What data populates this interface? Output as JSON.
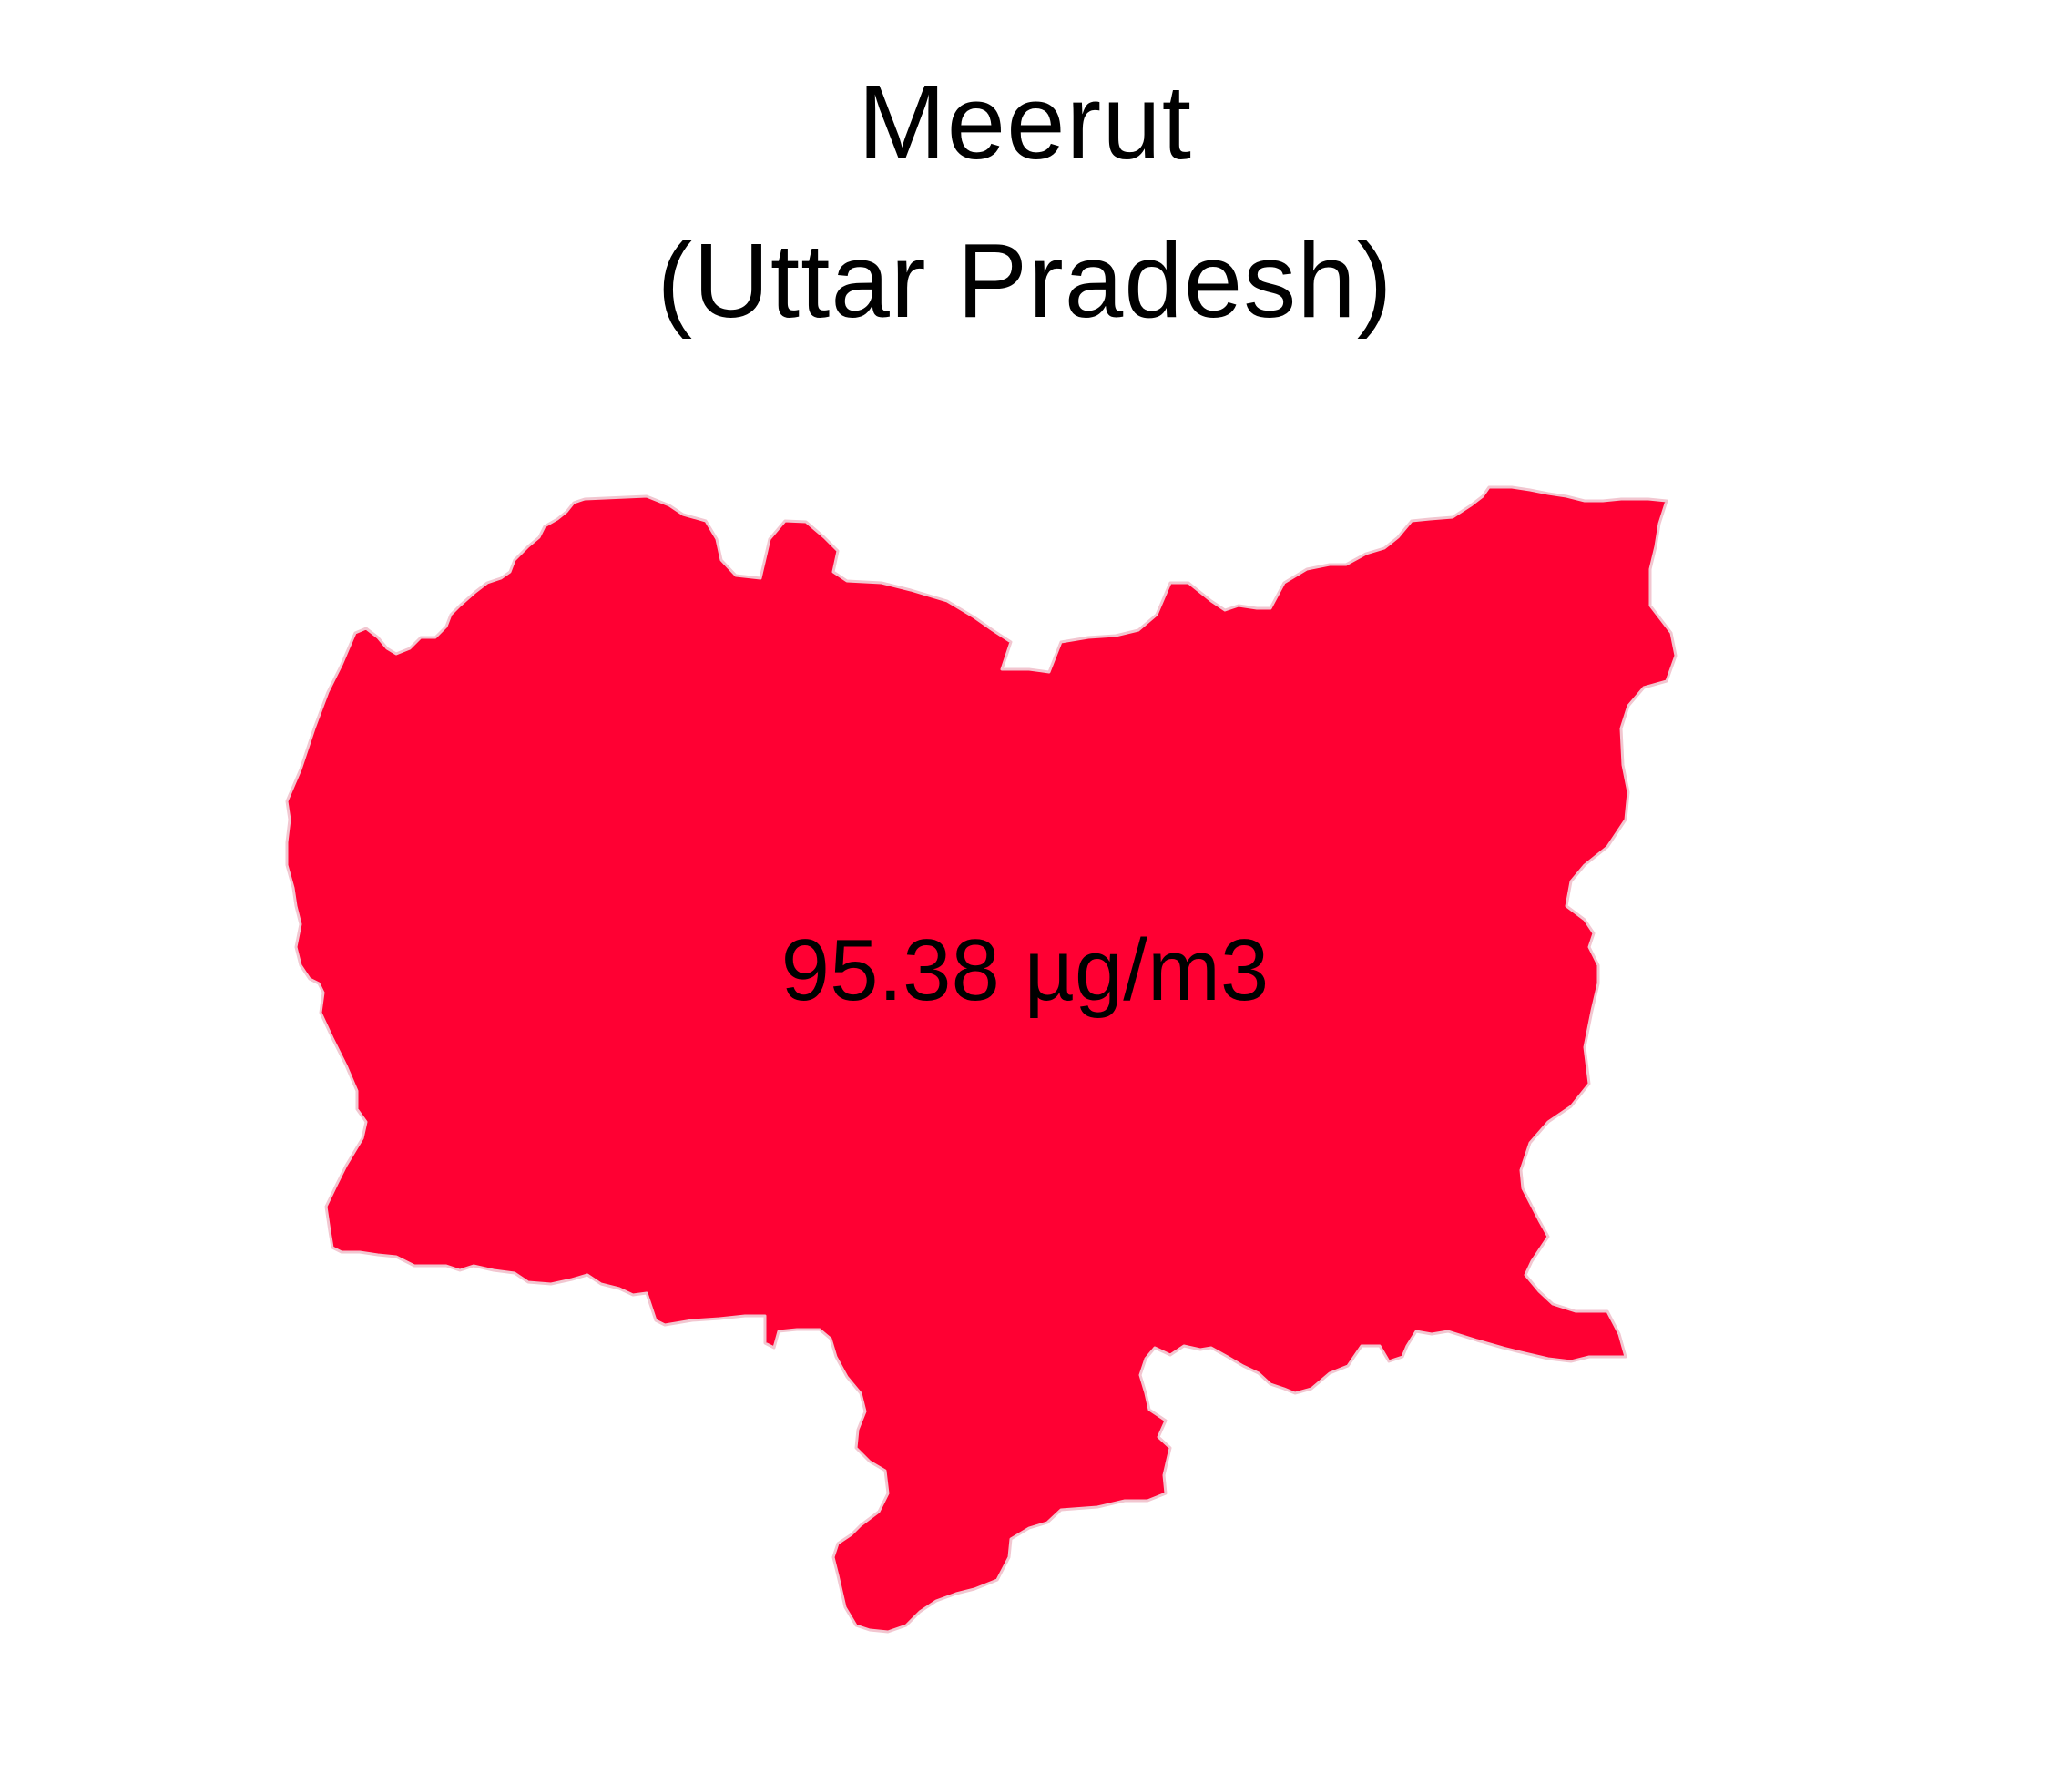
{
  "map": {
    "title_line_1": "Meerut",
    "title_line_2": "(Uttar Pradesh)",
    "region_name": "Meerut",
    "value_label": "95.38 µg/m3",
    "fill_color": "#ff0033",
    "border_color": "#f2c6d0"
  }
}
